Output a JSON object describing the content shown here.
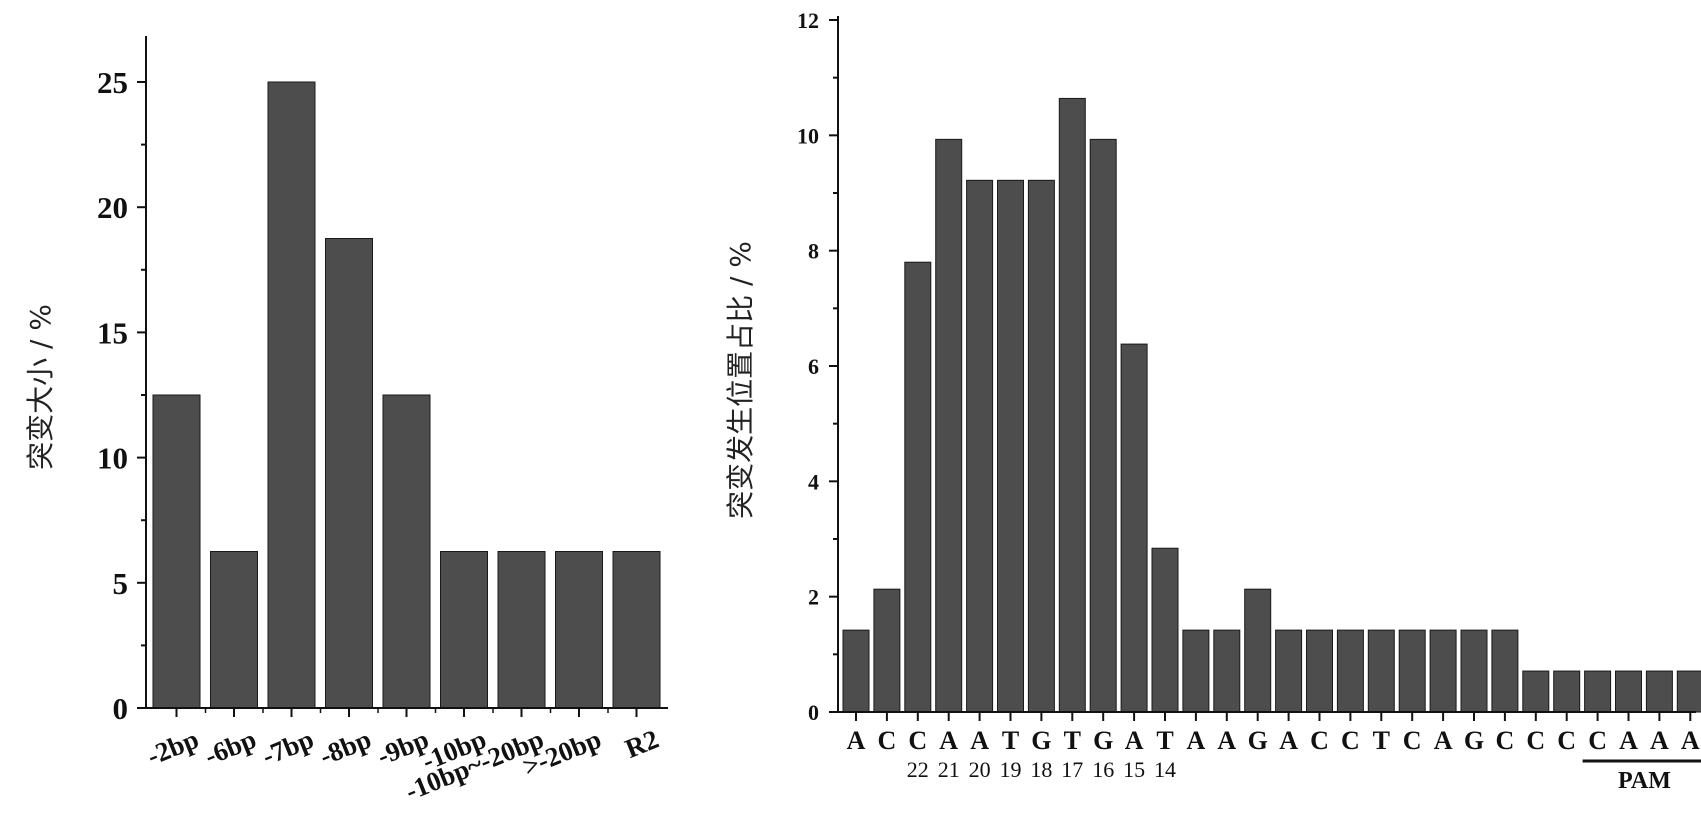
{
  "chart_data": [
    {
      "type": "bar",
      "title": "",
      "xlabel": "",
      "ylabel": "突变大小 / %",
      "categories": [
        "-2bp",
        "-6bp",
        "-7bp",
        "-8bp",
        "-9bp",
        "-10bp",
        "-10bp~-20bp",
        ">-20bp",
        "R2"
      ],
      "values": [
        12.5,
        6.25,
        25.0,
        18.75,
        12.5,
        6.25,
        6.25,
        6.25,
        6.25
      ],
      "ylim": [
        0,
        27
      ],
      "yticks": [
        "0",
        "5",
        "10",
        "15",
        "20",
        "25"
      ],
      "bar_color": "#4d4d4d",
      "grid": false
    },
    {
      "type": "bar",
      "title": "",
      "xlabel": "",
      "ylabel": "突变发生位置占比 / %",
      "categories": [
        "A",
        "C",
        "C",
        "A",
        "A",
        "T",
        "G",
        "T",
        "G",
        "A",
        "T",
        "A",
        "A",
        "G",
        "A",
        "C",
        "C",
        "T",
        "C",
        "A",
        "G",
        "C",
        "C",
        "C",
        "C",
        "A",
        "A",
        "A"
      ],
      "positions": [
        "",
        "",
        "22",
        "21",
        "20",
        "19",
        "18",
        "17",
        "16",
        "15",
        "14",
        "",
        "",
        "",
        "",
        "",
        "",
        "",
        "",
        "",
        "",
        "",
        "",
        "",
        "",
        "",
        "",
        ""
      ],
      "values": [
        1.42,
        2.13,
        7.8,
        9.93,
        9.22,
        9.22,
        9.22,
        10.64,
        9.93,
        6.38,
        2.84,
        1.42,
        1.42,
        2.13,
        1.42,
        1.42,
        1.42,
        1.42,
        1.42,
        1.42,
        1.42,
        1.42,
        0.71,
        0.71,
        0.71,
        0.71,
        0.71,
        0.71
      ],
      "ylim": [
        0,
        12
      ],
      "yticks": [
        "0",
        "2",
        "4",
        "6",
        "8",
        "10",
        "12"
      ],
      "annotation": "PAM",
      "bar_color": "#4d4d4d",
      "grid": false
    }
  ]
}
